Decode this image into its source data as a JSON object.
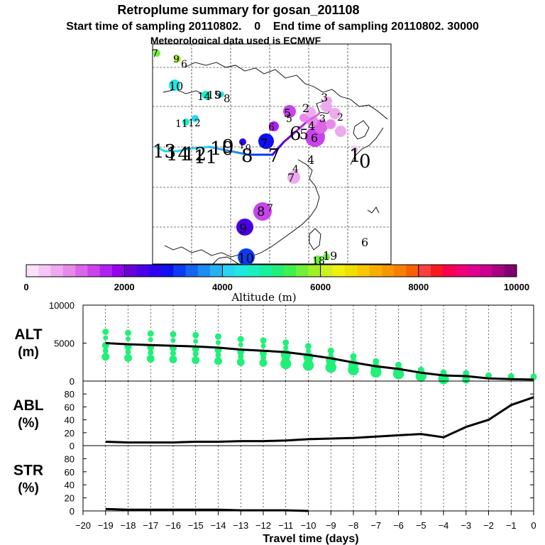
{
  "title": {
    "line1": "Retroplume summary for gosan_201108",
    "line2": "Start time of sampling 20110802.    0    End time of sampling 20110802. 30000",
    "line3": "Meteorological data used is ECMWF"
  },
  "colorbar": {
    "xlabel": "Altitude  (m)",
    "ticks": [
      "0",
      "2000",
      "4000",
      "6000",
      "8000",
      "10000"
    ],
    "colors": [
      "#fbe0fb",
      "#f4c8f4",
      "#eeaaee",
      "#e88ae8",
      "#dc66e8",
      "#c844ea",
      "#b020ee",
      "#9600ee",
      "#6a00d8",
      "#4a00e6",
      "#3000f0",
      "#1010f0",
      "#0b3cf0",
      "#1466f0",
      "#1e8cf0",
      "#24b2f0",
      "#28d4f0",
      "#1ee8e0",
      "#18f0c4",
      "#18f0a0",
      "#20f078",
      "#40f050",
      "#70f038",
      "#a0f028",
      "#d0f020",
      "#f0f010",
      "#f0e000",
      "#f8c800",
      "#f8b000",
      "#f89800",
      "#f88000",
      "#f86000",
      "#f84040",
      "#f81820",
      "#f80050",
      "#f00078",
      "#e00090",
      "#c80090",
      "#a80080",
      "#800070"
    ]
  },
  "map": {
    "trajectory_labels": [
      "13",
      "14",
      "12",
      "11",
      "10",
      "9",
      "8",
      "7",
      "6",
      "5",
      "4",
      "3",
      "2",
      "1",
      "0"
    ],
    "plume_labels": [
      "7",
      "9",
      "6",
      "10",
      "14",
      "15",
      "9",
      "8",
      "12",
      "11",
      "5",
      "3",
      "2",
      "4",
      "7",
      "6",
      "6",
      "7",
      "5",
      "8",
      "7",
      "9",
      "10",
      "18",
      "19",
      "6",
      "4",
      "1",
      "0"
    ]
  },
  "chart_data": [
    {
      "type": "line",
      "name": "ALT",
      "ylabel_1": "ALT",
      "ylabel_2": "(m)",
      "ylim": [
        0,
        10000
      ],
      "yticks": [
        "0",
        "5000",
        "10000"
      ],
      "x": [
        0,
        -1,
        -2,
        -3,
        -4,
        -5,
        -6,
        -7,
        -8,
        -9,
        -10,
        -11,
        -12,
        -13,
        -14,
        -15,
        -16,
        -17,
        -18,
        -19
      ],
      "values": [
        200,
        250,
        350,
        650,
        750,
        1100,
        1600,
        1950,
        2450,
        3000,
        3450,
        3800,
        4000,
        4150,
        4400,
        4550,
        4650,
        4750,
        4850,
        5000
      ],
      "scatter_note": "green plume particle dots"
    },
    {
      "type": "line",
      "name": "ABL",
      "ylabel_1": "ABL",
      "ylabel_2": "(%)",
      "ylim": [
        0,
        100
      ],
      "yticks": [
        "0",
        "20",
        "40",
        "60",
        "80"
      ],
      "x": [
        0,
        -1,
        -2,
        -3,
        -4,
        -5,
        -6,
        -7,
        -8,
        -9,
        -10,
        -11,
        -12,
        -13,
        -14,
        -15,
        -16,
        -17,
        -18,
        -19
      ],
      "values": [
        75,
        63,
        40,
        29,
        13,
        18,
        16,
        14,
        12,
        11,
        10,
        8,
        7,
        7,
        6,
        6,
        5,
        5,
        5,
        6
      ]
    },
    {
      "type": "line",
      "name": "STR",
      "ylabel_1": "STR",
      "ylabel_2": "(%)",
      "ylim": [
        0,
        100
      ],
      "yticks": [
        "0",
        "20",
        "40",
        "60",
        "80"
      ],
      "x": [
        -10,
        -11,
        -12,
        -13,
        -14,
        -15,
        -16,
        -17,
        -18,
        -19
      ],
      "values": [
        0,
        1,
        1,
        1,
        2,
        2,
        2,
        2,
        2,
        3
      ]
    }
  ],
  "xaxis": {
    "label": "Travel time (days)",
    "ticks": [
      "−20",
      "−19",
      "−18",
      "−17",
      "−16",
      "−15",
      "−14",
      "−13",
      "−12",
      "−11",
      "−10",
      "−9",
      "−8",
      "−7",
      "−6",
      "−5",
      "−4",
      "−3",
      "−2",
      "−1",
      "0"
    ]
  }
}
